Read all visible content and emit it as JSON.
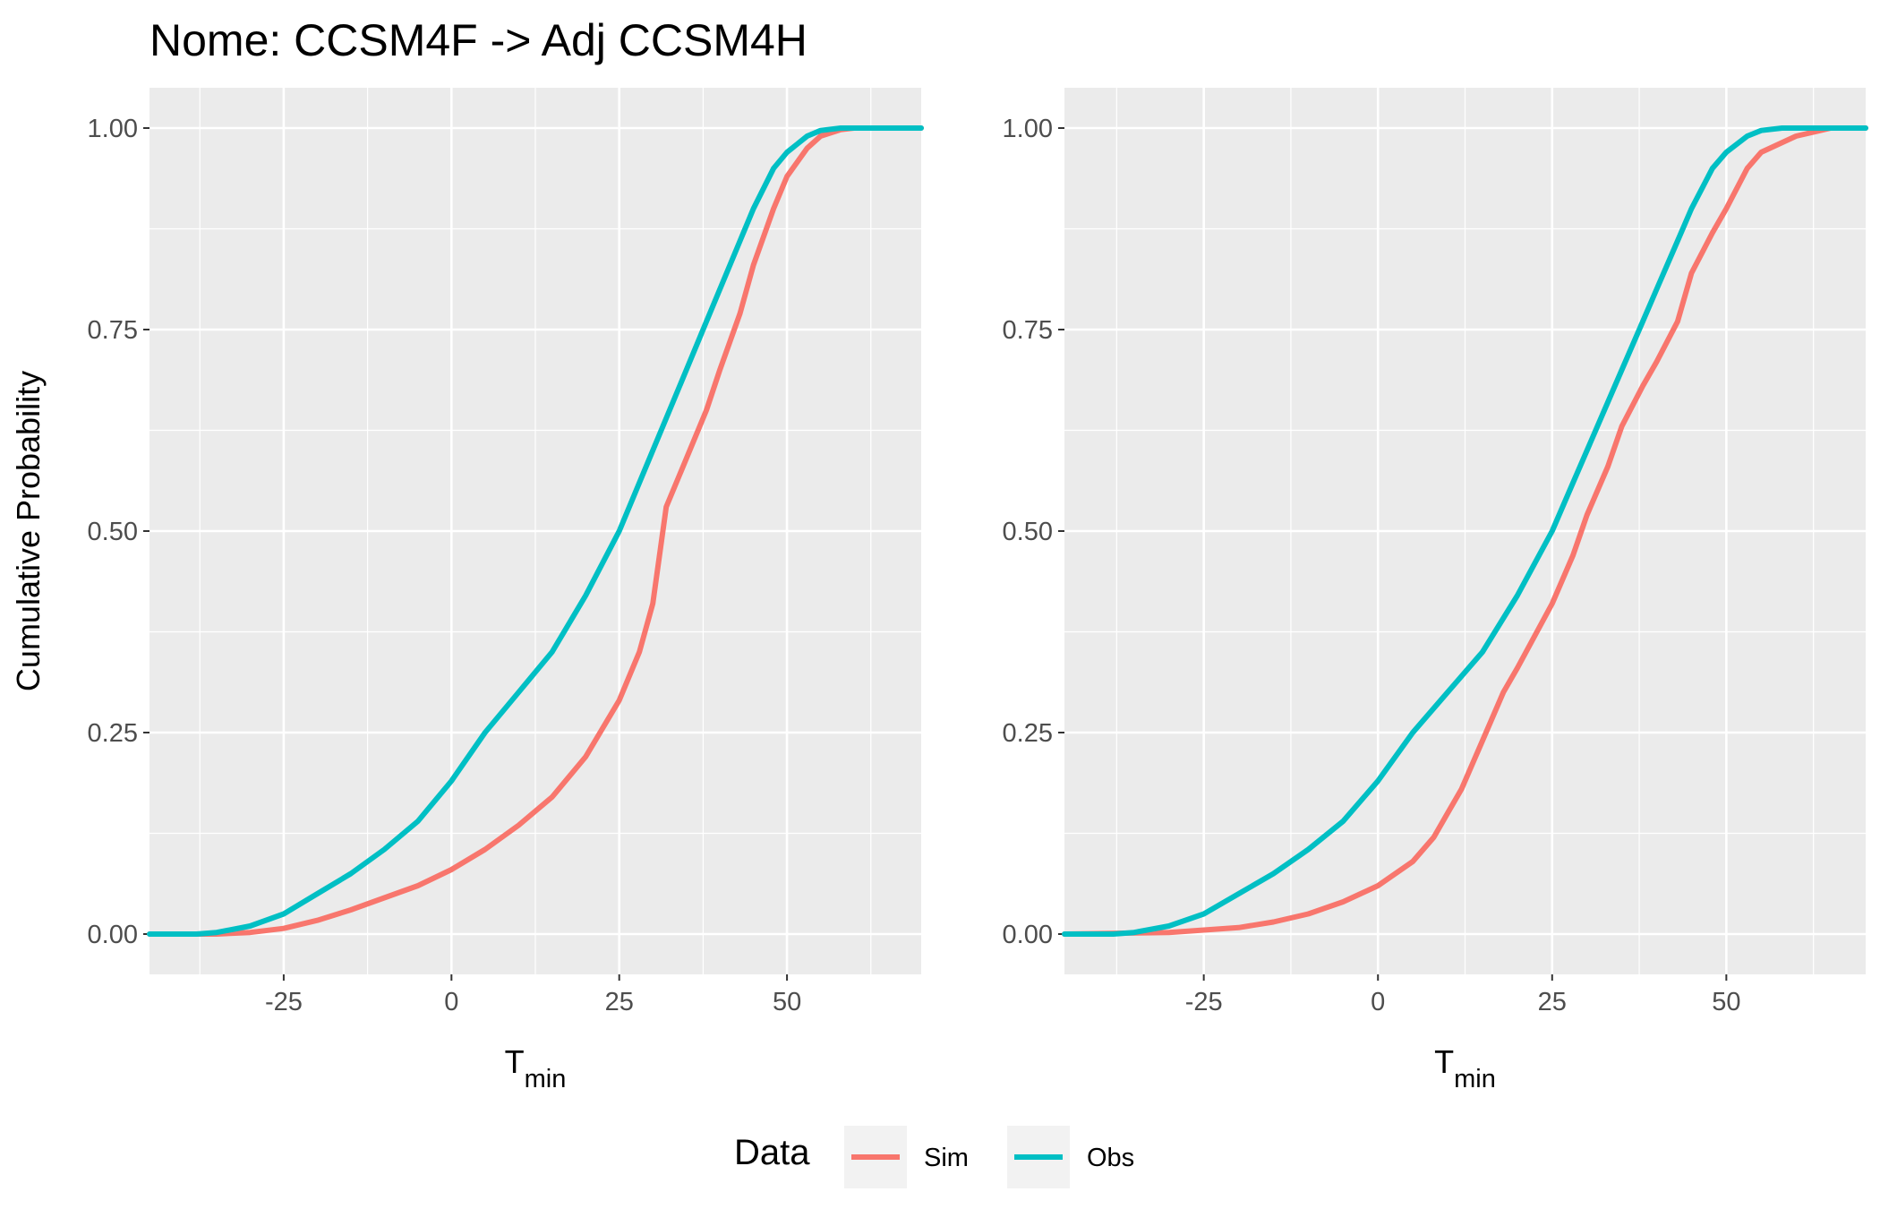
{
  "figure": {
    "title": "Nome: CCSM4F -> Adj CCSM4H",
    "legend": {
      "title": "Data",
      "items": [
        {
          "label": "Sim",
          "color": "#F8766D"
        },
        {
          "label": "Obs",
          "color": "#00BFC4"
        }
      ],
      "placement": "bottom"
    }
  },
  "chart_data": [
    {
      "type": "line",
      "xlabel": "T",
      "xlabel_subscript": "min",
      "ylabel": "Cumulative Probability",
      "xlim": [
        -45,
        70
      ],
      "ylim": [
        -0.05,
        1.05
      ],
      "xticks": [
        -25,
        0,
        25,
        50
      ],
      "xtick_labels": [
        "-25",
        "0",
        "25",
        "50"
      ],
      "yticks": [
        0,
        0.25,
        0.5,
        0.75,
        1.0
      ],
      "ytick_labels": [
        "0.00",
        "0.25",
        "0.50",
        "0.75",
        "1.00"
      ],
      "grid": true,
      "series": [
        {
          "name": "Sim",
          "color": "#F8766D",
          "x": [
            -45,
            -35,
            -30,
            -25,
            -20,
            -15,
            -10,
            -5,
            0,
            5,
            10,
            15,
            20,
            25,
            28,
            30,
            32,
            35,
            38,
            40,
            43,
            45,
            48,
            50,
            53,
            55,
            58,
            60,
            65,
            70
          ],
          "y": [
            0,
            0,
            0.002,
            0.007,
            0.017,
            0.03,
            0.045,
            0.06,
            0.08,
            0.105,
            0.135,
            0.17,
            0.22,
            0.29,
            0.35,
            0.41,
            0.53,
            0.59,
            0.65,
            0.7,
            0.77,
            0.83,
            0.9,
            0.94,
            0.975,
            0.99,
            0.998,
            1.0,
            1.0,
            1.0
          ]
        },
        {
          "name": "Obs",
          "color": "#00BFC4",
          "x": [
            -45,
            -38,
            -35,
            -30,
            -25,
            -20,
            -15,
            -10,
            -5,
            0,
            5,
            10,
            15,
            20,
            25,
            28,
            30,
            35,
            38,
            40,
            43,
            45,
            48,
            50,
            53,
            55,
            58,
            60,
            65,
            70
          ],
          "y": [
            0,
            0,
            0.002,
            0.01,
            0.025,
            0.05,
            0.075,
            0.105,
            0.14,
            0.19,
            0.25,
            0.3,
            0.35,
            0.42,
            0.5,
            0.56,
            0.6,
            0.7,
            0.76,
            0.8,
            0.86,
            0.9,
            0.95,
            0.97,
            0.99,
            0.997,
            1.0,
            1.0,
            1.0,
            1.0
          ]
        }
      ]
    },
    {
      "type": "line",
      "xlabel": "T",
      "xlabel_subscript": "min",
      "ylabel": "",
      "xlim": [
        -45,
        70
      ],
      "ylim": [
        -0.05,
        1.05
      ],
      "xticks": [
        -25,
        0,
        25,
        50
      ],
      "xtick_labels": [
        "-25",
        "0",
        "25",
        "50"
      ],
      "yticks": [
        0,
        0.25,
        0.5,
        0.75,
        1.0
      ],
      "ytick_labels": [
        "0.00",
        "0.25",
        "0.50",
        "0.75",
        "1.00"
      ],
      "grid": true,
      "series": [
        {
          "name": "Sim",
          "color": "#F8766D",
          "x": [
            -45,
            -30,
            -25,
            -20,
            -15,
            -10,
            -5,
            0,
            5,
            8,
            10,
            12,
            15,
            18,
            20,
            25,
            28,
            30,
            33,
            35,
            38,
            40,
            43,
            45,
            48,
            50,
            53,
            55,
            60,
            65,
            70
          ],
          "y": [
            0,
            0.002,
            0.005,
            0.008,
            0.015,
            0.025,
            0.04,
            0.06,
            0.09,
            0.12,
            0.15,
            0.18,
            0.24,
            0.3,
            0.33,
            0.41,
            0.47,
            0.52,
            0.58,
            0.63,
            0.68,
            0.71,
            0.76,
            0.82,
            0.87,
            0.9,
            0.95,
            0.97,
            0.99,
            1.0,
            1.0
          ]
        },
        {
          "name": "Obs",
          "color": "#00BFC4",
          "x": [
            -45,
            -38,
            -35,
            -30,
            -25,
            -20,
            -15,
            -10,
            -5,
            0,
            5,
            10,
            15,
            20,
            25,
            28,
            30,
            35,
            38,
            40,
            43,
            45,
            48,
            50,
            53,
            55,
            58,
            60,
            65,
            70
          ],
          "y": [
            0,
            0,
            0.002,
            0.01,
            0.025,
            0.05,
            0.075,
            0.105,
            0.14,
            0.19,
            0.25,
            0.3,
            0.35,
            0.42,
            0.5,
            0.56,
            0.6,
            0.7,
            0.76,
            0.8,
            0.86,
            0.9,
            0.95,
            0.97,
            0.99,
            0.997,
            1.0,
            1.0,
            1.0,
            1.0
          ]
        }
      ]
    }
  ]
}
